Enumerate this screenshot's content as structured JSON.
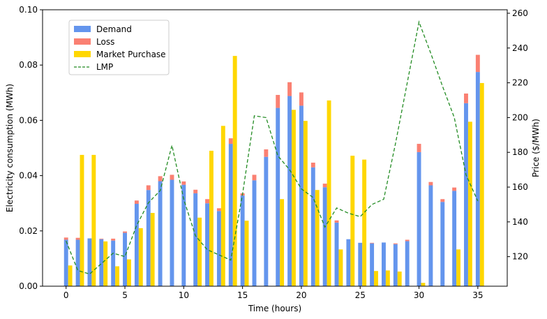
{
  "chart_data": {
    "type": "bar",
    "xlabel": "Time (hours)",
    "ylabel": "Electricity consumption (MWh)",
    "y2label": "Price ($/MWh)",
    "xlim": [
      -2,
      37.5
    ],
    "ylim": [
      0,
      0.1
    ],
    "y2lim": [
      103,
      262
    ],
    "x_ticks": [
      0,
      5,
      10,
      15,
      20,
      25,
      30,
      35
    ],
    "y_ticks": [
      0.0,
      0.02,
      0.04,
      0.06,
      0.08,
      0.1
    ],
    "y_tick_labels": [
      "0.00",
      "0.02",
      "0.04",
      "0.06",
      "0.08",
      "0.10"
    ],
    "y2_ticks": [
      120,
      140,
      160,
      180,
      200,
      220,
      240,
      260
    ],
    "stacked": true,
    "grid": false,
    "legend": "top-left",
    "x": [
      0,
      1,
      2,
      3,
      4,
      5,
      6,
      7,
      8,
      9,
      10,
      11,
      12,
      13,
      14,
      15,
      16,
      17,
      18,
      19,
      20,
      21,
      22,
      23,
      24,
      25,
      26,
      27,
      28,
      29,
      30,
      31,
      32,
      33,
      34,
      35
    ],
    "series": [
      {
        "name": "Demand",
        "color": "#6495ED",
        "values": [
          0.0168,
          0.0168,
          0.0173,
          0.017,
          0.0165,
          0.0193,
          0.0298,
          0.0348,
          0.038,
          0.0385,
          0.0367,
          0.0336,
          0.03,
          0.0272,
          0.0515,
          0.0328,
          0.0383,
          0.0468,
          0.0645,
          0.0688,
          0.0653,
          0.043,
          0.0358,
          0.023,
          0.017,
          0.0157,
          0.0155,
          0.0158,
          0.0152,
          0.0163,
          0.0485,
          0.0365,
          0.0305,
          0.0345,
          0.0662,
          0.0775
        ]
      },
      {
        "name": "Loss",
        "color": "#FA8072",
        "values": [
          0.0008,
          0.0007,
          0.0,
          0.0002,
          0.0007,
          0.0005,
          0.0012,
          0.0017,
          0.0018,
          0.0018,
          0.0012,
          0.0013,
          0.0015,
          0.001,
          0.002,
          0.0008,
          0.002,
          0.0027,
          0.0047,
          0.005,
          0.0048,
          0.0017,
          0.0013,
          0.0008,
          0.0,
          0.0,
          0.0002,
          0.0,
          0.0003,
          0.0005,
          0.003,
          0.0012,
          0.001,
          0.0012,
          0.0035,
          0.0062
        ]
      },
      {
        "name": "Market Purchase",
        "color": "#FFD700",
        "values": [
          0.0075,
          0.0475,
          0.0475,
          0.0162,
          0.0072,
          0.0097,
          0.021,
          0.0265,
          0.0,
          0.0,
          0.0,
          0.0248,
          0.049,
          0.058,
          0.0833,
          0.0237,
          0.0,
          0.0,
          0.0315,
          0.0638,
          0.0598,
          0.0348,
          0.0672,
          0.0133,
          0.0472,
          0.0458,
          0.0055,
          0.0057,
          0.0053,
          0.0,
          0.0012,
          0.0,
          0.0,
          0.0133,
          0.0595,
          0.0735
        ]
      }
    ],
    "lmp": {
      "name": "LMP",
      "color": "#228B22",
      "axis": "right",
      "style": "dashed",
      "values": [
        129,
        112,
        110,
        116,
        122,
        120,
        138,
        151,
        158,
        184,
        153,
        132,
        124,
        121,
        118,
        156,
        201,
        200,
        178,
        170,
        159,
        154,
        137,
        148,
        145,
        143,
        150,
        153,
        185,
        220,
        255,
        237,
        218,
        200,
        167,
        152
      ]
    }
  }
}
